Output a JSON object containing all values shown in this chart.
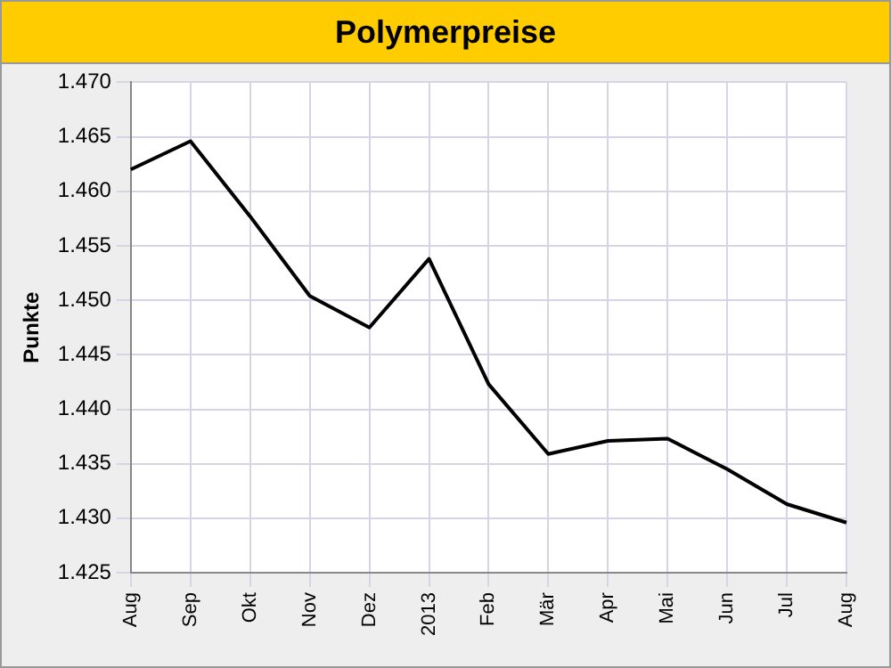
{
  "chart_data": {
    "type": "line",
    "title": "Polymerpreise",
    "ylabel": "Punkte",
    "categories": [
      "Aug",
      "Sep",
      "Okt",
      "Nov",
      "Dez",
      "2013",
      "Feb",
      "Mär",
      "Apr",
      "Mai",
      "Jun",
      "Jul",
      "Aug"
    ],
    "series": [
      {
        "color": "#000000",
        "values": [
          1462,
          1464.6,
          1457.7,
          1450.4,
          1447.5,
          1453.8,
          1442.3,
          1435.9,
          1437.1,
          1437.3,
          1434.5,
          1431.3,
          1429.6
        ]
      }
    ],
    "ylim": [
      1425,
      1470
    ],
    "yticks": [
      {
        "value": 1425,
        "label": "1.425"
      },
      {
        "value": 1430,
        "label": "1.430"
      },
      {
        "value": 1435,
        "label": "1.435"
      },
      {
        "value": 1440,
        "label": "1.440"
      },
      {
        "value": 1445,
        "label": "1.445"
      },
      {
        "value": 1450,
        "label": "1.450"
      },
      {
        "value": 1455,
        "label": "1.455"
      },
      {
        "value": 1460,
        "label": "1.460"
      },
      {
        "value": 1465,
        "label": "1.465"
      },
      {
        "value": 1470,
        "label": "1.470"
      }
    ],
    "grid": true,
    "marker": "none",
    "line_style": "solid"
  }
}
